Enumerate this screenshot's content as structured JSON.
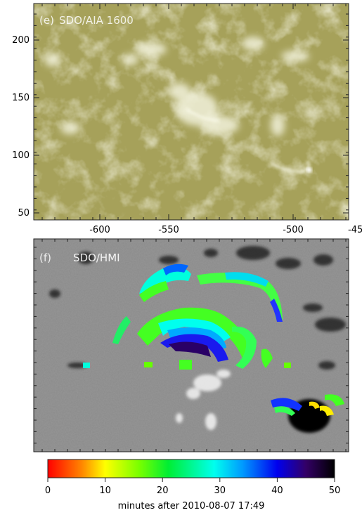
{
  "panel_e": {
    "label": "(e)",
    "title": "SDO/AIA 1600",
    "y_ticks": [
      "200",
      "150",
      "100",
      "50"
    ],
    "x_ticks": [
      "-600",
      "-550",
      "-500",
      "-45"
    ],
    "base_color": "#a8a35a"
  },
  "panel_f": {
    "label": "(f)",
    "title": "SDO/HMI",
    "base_color": "#8a8a8a"
  },
  "colorbar": {
    "ticks": [
      "0",
      "10",
      "20",
      "30",
      "40",
      "50"
    ],
    "label": "minutes after 2010-08-07 17:49",
    "range": [
      0,
      50
    ],
    "colors": [
      "#ff0000",
      "#ff9900",
      "#ffff00",
      "#66ff00",
      "#00ee44",
      "#00ffdd",
      "#0099ff",
      "#0000ff",
      "#330077",
      "#000000"
    ]
  }
}
